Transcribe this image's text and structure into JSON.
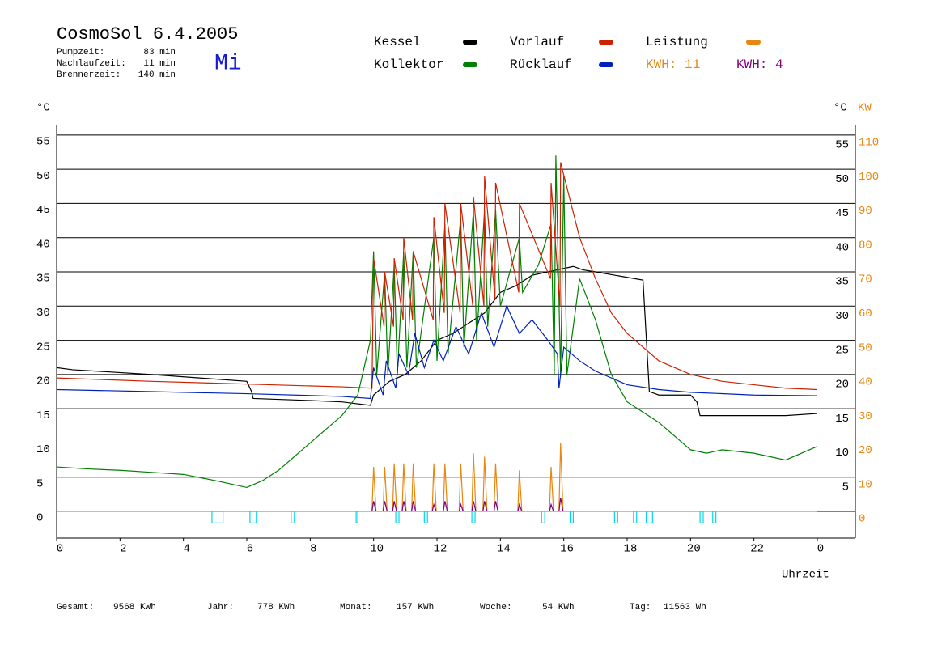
{
  "header": {
    "title": "CosmoSol 6.4.2005",
    "stats": [
      [
        "Pumpzeit:",
        "83 min"
      ],
      [
        "Nachlaufzeit:",
        "11 min"
      ],
      [
        "Brennerzeit:",
        "140 min"
      ]
    ],
    "weekday": "Mi",
    "kwh_orange": "KWH: 11",
    "kwh_purple": "KWH: 4"
  },
  "footer": [
    [
      "Gesamt:",
      "9568 KWh"
    ],
    [
      "Jahr:",
      "778 KWh"
    ],
    [
      "Monat:",
      "157 KWh"
    ],
    [
      "Woche:",
      "54 KWh"
    ],
    [
      "Tag:",
      "11563 Wh"
    ]
  ],
  "chart_data": {
    "type": "line",
    "y_label": "°C",
    "y_label_right": "°C",
    "y2_label": "KW",
    "x_label": "Uhrzeit",
    "xlim": [
      0,
      25.2
    ],
    "xticks": [
      0,
      2,
      4,
      6,
      8,
      10,
      12,
      14,
      16,
      18,
      20,
      22,
      {
        "value": 24,
        "label": "0"
      }
    ],
    "ylim": [
      -3.9,
      56.4
    ],
    "yticks": [
      0,
      5,
      10,
      15,
      20,
      25,
      30,
      35,
      40,
      45,
      50,
      55
    ],
    "yticks_right": [
      5,
      10,
      15,
      20,
      25,
      30,
      35,
      40,
      45,
      50,
      55
    ],
    "y2lim": [
      -7.8,
      112.8
    ],
    "y2ticks": [
      0,
      10,
      20,
      30,
      40,
      50,
      60,
      70,
      80,
      90,
      100,
      110
    ],
    "grid": true,
    "series": [
      {
        "name": "Kessel",
        "color": "#000000",
        "x": [
          0,
          0.5,
          3,
          6,
          6.15,
          6.2,
          8,
          9,
          9.9,
          10.0,
          10.5,
          11,
          11.5,
          12,
          12.5,
          13,
          13.5,
          14,
          14.5,
          15,
          15.5,
          16,
          16.3,
          16.6,
          17,
          18,
          18.5,
          18.7,
          19,
          20,
          20.2,
          20.3,
          21,
          23,
          24
        ],
        "values": [
          21,
          20.7,
          20,
          19,
          17.5,
          16.5,
          16.2,
          16,
          15.5,
          17,
          19,
          20,
          22,
          25,
          26,
          27.5,
          29,
          32,
          33,
          34.5,
          35,
          35.5,
          35.8,
          35.3,
          35,
          34.2,
          33.8,
          17.5,
          17,
          17,
          16,
          14,
          14,
          14,
          14.3
        ]
      },
      {
        "name": "Kollektor",
        "color": "#008000",
        "x": [
          0,
          1,
          2,
          3,
          4,
          5,
          5.5,
          6,
          6.5,
          7,
          8,
          9,
          9.5,
          9.9,
          10.0,
          10.1,
          10.35,
          10.45,
          10.65,
          10.75,
          10.95,
          11.05,
          11.25,
          11.35,
          11.9,
          12.0,
          12.25,
          12.35,
          12.75,
          12.85,
          13.15,
          13.25,
          13.5,
          13.6,
          13.85,
          14.0,
          14.6,
          14.7,
          15.2,
          15.6,
          15.7,
          15.75,
          15.9,
          16.0,
          16.1,
          16.5,
          17,
          17.5,
          18,
          19,
          20,
          20.5,
          21,
          22,
          23,
          24
        ],
        "values": [
          6.5,
          6.2,
          6,
          5.7,
          5.4,
          4.5,
          4,
          3.5,
          4.5,
          6,
          10,
          14,
          17,
          25,
          38,
          20,
          35,
          20,
          36,
          20,
          38,
          21,
          38,
          21,
          40,
          22,
          42,
          23,
          43,
          24,
          44,
          25,
          44,
          27,
          44,
          30,
          40,
          32,
          36,
          42,
          20,
          52,
          20,
          49,
          20,
          34,
          28,
          20,
          16,
          13,
          9,
          8.5,
          9,
          8.5,
          7.5,
          9.5
        ]
      },
      {
        "name": "Vorlauf",
        "color": "#cc2200",
        "x": [
          0,
          3,
          6,
          9,
          9.95,
          10.0,
          10.33,
          10.35,
          10.63,
          10.65,
          10.93,
          10.95,
          11.23,
          11.25,
          11.88,
          11.9,
          12.23,
          12.25,
          12.73,
          12.75,
          13.13,
          13.15,
          13.48,
          13.5,
          13.83,
          13.85,
          14.58,
          14.6,
          15.58,
          15.6,
          15.88,
          15.9,
          16.5,
          17,
          17.5,
          18,
          19,
          20,
          21,
          22,
          23,
          24
        ],
        "values": [
          19.5,
          19,
          18.6,
          18.2,
          18,
          37,
          27,
          35,
          27,
          37,
          28,
          40,
          28,
          38,
          28,
          43,
          29,
          45,
          29,
          45,
          30,
          46,
          30,
          49,
          31,
          48,
          32,
          45,
          34,
          48,
          30,
          51,
          40,
          34,
          29,
          26,
          22,
          20,
          19,
          18.5,
          18,
          17.8
        ]
      },
      {
        "name": "Rücklauf",
        "color": "#0022bb",
        "x": [
          0,
          3,
          6,
          9,
          9.9,
          10.0,
          10.3,
          10.4,
          10.7,
          10.8,
          11.1,
          11.3,
          11.6,
          11.9,
          12.2,
          12.6,
          13.0,
          13.4,
          13.8,
          14.2,
          14.6,
          15.0,
          15.5,
          15.8,
          15.85,
          16.0,
          16.5,
          17,
          18,
          19,
          20,
          22,
          24
        ],
        "values": [
          17.8,
          17.5,
          17.2,
          16.8,
          16.5,
          21,
          17,
          22,
          18,
          23,
          20,
          26,
          21,
          25,
          22,
          27,
          23,
          29,
          24,
          30,
          26,
          28,
          25,
          23,
          18,
          24,
          22,
          20.5,
          18.5,
          17.8,
          17.4,
          17,
          16.9
        ]
      },
      {
        "name": "Leistung",
        "color": "#e8860f",
        "axis": "y2",
        "style": "spike",
        "x": [
          10.0,
          10.35,
          10.65,
          10.95,
          11.25,
          11.9,
          12.25,
          12.75,
          13.15,
          13.5,
          13.85,
          14.6,
          15.6,
          15.9
        ],
        "values": [
          13,
          13,
          14,
          14,
          14,
          14,
          14,
          14,
          17,
          16,
          14,
          12,
          13,
          20
        ]
      },
      {
        "color": "#800080",
        "axis": "y2",
        "style": "spike",
        "x": [
          10.0,
          10.35,
          10.65,
          10.95,
          11.25,
          11.9,
          12.25,
          12.75,
          13.15,
          13.5,
          13.85,
          14.6,
          15.6,
          15.9
        ],
        "values": [
          3,
          3,
          3,
          3,
          3,
          2,
          3,
          2,
          3,
          3,
          3,
          2,
          2,
          4
        ]
      },
      {
        "color": "#00d8e8",
        "style": "pulse",
        "x_start": [
          4.9,
          6.1,
          7.4,
          9.45,
          10.7,
          11.6,
          13.1,
          15.3,
          16.2,
          17.6,
          18.2,
          18.6,
          20.3,
          20.7
        ],
        "x_end": [
          5.25,
          6.3,
          7.5,
          9.5,
          10.8,
          11.7,
          13.2,
          15.4,
          16.3,
          17.7,
          18.3,
          18.8,
          20.4,
          20.8
        ],
        "values": [
          -1.7,
          -1.7,
          -1.7,
          -1.7,
          -1.7,
          -1.7,
          -1.7,
          -1.7,
          -1.7,
          -1.7,
          -1.7,
          -1.7,
          -1.7,
          -1.7
        ]
      }
    ]
  }
}
